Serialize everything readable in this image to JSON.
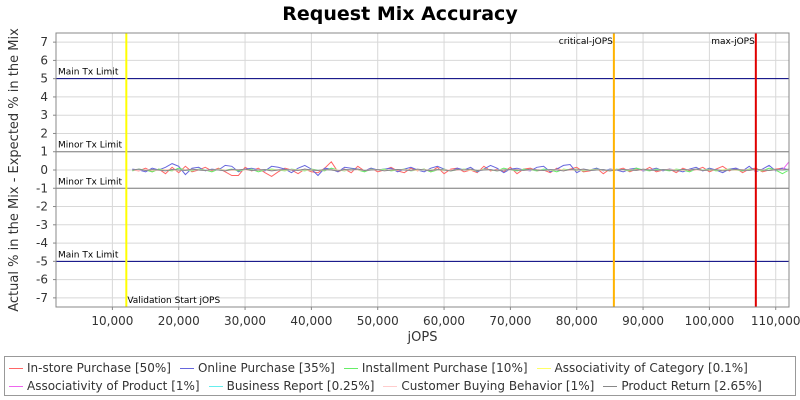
{
  "chart_data": {
    "type": "line",
    "title": "Request Mix Accuracy",
    "xlabel": "jOPS",
    "ylabel": "Actual % in the Mix - Expected % in the Mix",
    "xlim": [
      1500,
      112000
    ],
    "ylim": [
      -7.5,
      7.5
    ],
    "x_ticks": [
      10000,
      20000,
      30000,
      40000,
      50000,
      60000,
      70000,
      80000,
      90000,
      100000,
      110000
    ],
    "x_tick_labels": [
      "10,000",
      "20,000",
      "30,000",
      "40,000",
      "50,000",
      "60,000",
      "70,000",
      "80,000",
      "90,000",
      "100,000",
      "110,000"
    ],
    "y_ticks": [
      -7,
      -6,
      -5,
      -4,
      -3,
      -2,
      -1,
      0,
      1,
      2,
      3,
      4,
      5,
      6,
      7
    ],
    "grid": true,
    "legend_position": "bottom",
    "limit_lines": [
      {
        "label": "Main Tx Limit",
        "y": 5,
        "color": "#000080"
      },
      {
        "label": "Minor Tx Limit",
        "y": 1,
        "color": "#808080"
      },
      {
        "label": "Minor Tx Limit",
        "y": -1,
        "color": "#808080"
      },
      {
        "label": "Main Tx Limit",
        "y": -5,
        "color": "#000080"
      }
    ],
    "markers": [
      {
        "label": "Validation Start jOPS",
        "x": 12100,
        "color": "#ffff00",
        "label_position": "bottom"
      },
      {
        "label": "critical-jOPS",
        "x": 85600,
        "color": "#ffb300",
        "label_position": "top"
      },
      {
        "label": "max-jOPS",
        "x": 107000,
        "color": "#e00000",
        "label_position": "top"
      }
    ],
    "x": [
      13000,
      14000,
      15000,
      16000,
      17000,
      18000,
      19000,
      20000,
      21000,
      22000,
      23000,
      24000,
      25000,
      26000,
      27000,
      28000,
      29000,
      30000,
      31000,
      32000,
      33000,
      34000,
      35000,
      36000,
      37000,
      38000,
      39000,
      40000,
      41000,
      42000,
      43000,
      44000,
      45000,
      46000,
      47000,
      48000,
      49000,
      50000,
      51000,
      52000,
      53000,
      54000,
      55000,
      56000,
      57000,
      58000,
      59000,
      60000,
      61000,
      62000,
      63000,
      64000,
      65000,
      66000,
      67000,
      68000,
      69000,
      70000,
      71000,
      72000,
      73000,
      74000,
      75000,
      76000,
      77000,
      78000,
      79000,
      80000,
      81000,
      82000,
      83000,
      84000,
      85000,
      86000,
      87000,
      88000,
      89000,
      90000,
      91000,
      92000,
      93000,
      94000,
      95000,
      96000,
      97000,
      98000,
      99000,
      100000,
      101000,
      102000,
      103000,
      104000,
      105000,
      106000,
      107000,
      108000,
      109000,
      110000,
      111000,
      112000
    ],
    "series": [
      {
        "name": "In-store Purchase [50%]",
        "color": "#ff6666",
        "values": [
          0.0,
          -0.05,
          0.1,
          -0.1,
          0.05,
          -0.2,
          0.15,
          -0.15,
          0.2,
          -0.1,
          0.0,
          0.15,
          -0.05,
          0.1,
          -0.1,
          -0.3,
          -0.3,
          0.15,
          -0.05,
          0.1,
          -0.15,
          -0.35,
          -0.1,
          0.1,
          0.0,
          -0.2,
          0.05,
          -0.1,
          -0.15,
          0.1,
          0.45,
          -0.1,
          0.05,
          -0.15,
          0.2,
          -0.05,
          0.1,
          -0.1,
          0.0,
          0.15,
          -0.05,
          -0.15,
          0.1,
          -0.05,
          0.05,
          -0.1,
          0.15,
          -0.2,
          0.05,
          0.1,
          -0.1,
          0.0,
          -0.15,
          0.2,
          -0.05,
          0.05,
          -0.1,
          0.15,
          -0.2,
          0.05,
          0.1,
          -0.05,
          0.0,
          -0.15,
          0.1,
          -0.05,
          0.05,
          0.15,
          -0.1,
          -0.05,
          0.1,
          -0.2,
          0.05,
          0.0,
          0.1,
          -0.1,
          0.05,
          -0.05,
          0.15,
          -0.1,
          0.0,
          0.05,
          -0.15,
          0.1,
          -0.05,
          0.0,
          0.15,
          -0.1,
          0.05,
          0.2,
          -0.05,
          0.1,
          -0.15,
          0.05,
          0.1,
          -0.1,
          0.0,
          0.05,
          0.1,
          -0.05
        ]
      },
      {
        "name": "Online Purchase [35%]",
        "color": "#6666dd",
        "values": [
          0.05,
          0.0,
          -0.1,
          0.1,
          0.0,
          0.15,
          0.35,
          0.2,
          -0.25,
          0.1,
          0.15,
          -0.05,
          0.05,
          0.0,
          0.25,
          0.2,
          -0.1,
          0.05,
          0.1,
          0.0,
          -0.05,
          0.2,
          0.15,
          0.05,
          -0.15,
          0.1,
          0.25,
          0.05,
          -0.3,
          0.1,
          0.05,
          -0.1,
          0.15,
          0.1,
          0.05,
          -0.05,
          0.1,
          0.0,
          0.05,
          0.1,
          -0.1,
          0.05,
          0.15,
          0.0,
          -0.1,
          0.1,
          0.2,
          0.05,
          -0.05,
          0.1,
          0.0,
          0.15,
          -0.1,
          0.05,
          0.25,
          0.1,
          -0.15,
          0.05,
          0.1,
          0.0,
          -0.05,
          0.15,
          0.2,
          -0.1,
          0.05,
          0.25,
          0.3,
          -0.15,
          0.05,
          0.0,
          0.1,
          -0.05,
          0.05,
          0.0,
          -0.1,
          0.05,
          0.1,
          -0.05,
          0.0,
          0.1,
          -0.05,
          0.05,
          0.0,
          -0.1,
          0.05,
          0.15,
          -0.05,
          0.1,
          0.0,
          -0.15,
          0.05,
          0.1,
          -0.05,
          0.2,
          -0.1,
          0.05,
          0.25,
          -0.05,
          0.1,
          0.0
        ]
      },
      {
        "name": "Installment Purchase [10%]",
        "color": "#66ee66",
        "values": [
          -0.05,
          0.05,
          0.0,
          -0.1,
          0.05,
          0.0,
          -0.05,
          0.1,
          0.0,
          -0.05,
          0.05,
          0.0,
          -0.1,
          0.05,
          0.0,
          0.05,
          -0.05,
          0.0,
          0.05,
          -0.1,
          0.0,
          0.05,
          0.0,
          -0.05,
          0.05,
          0.0,
          -0.05,
          0.05,
          0.0,
          -0.05,
          0.1,
          0.0,
          -0.05,
          0.05,
          0.0,
          -0.1,
          0.05,
          0.0,
          0.05,
          -0.05,
          0.0,
          0.05,
          -0.05,
          0.0,
          0.05,
          -0.1,
          0.0,
          0.05,
          -0.05,
          0.0,
          0.05,
          0.0,
          -0.05,
          0.05,
          0.0,
          -0.05,
          0.1,
          0.0,
          -0.05,
          0.05,
          0.0,
          -0.05,
          0.05,
          0.0,
          -0.1,
          0.05,
          0.0,
          0.05,
          -0.05,
          0.0,
          0.05,
          0.0,
          -0.05,
          0.05,
          0.0,
          -0.05,
          0.1,
          0.0,
          -0.05,
          0.05,
          0.0,
          -0.05,
          0.05,
          0.0,
          -0.1,
          0.05,
          0.0,
          0.05,
          -0.05,
          0.0,
          0.05,
          0.0,
          -0.05,
          0.05,
          0.0,
          -0.05,
          0.1,
          0.0,
          -0.2,
          0.0
        ]
      },
      {
        "name": "Associativity of Category [0.1%]",
        "color": "#ffff66",
        "values": [
          0.0,
          0.01,
          0.0,
          -0.01,
          0.0,
          0.01,
          0.0,
          -0.01,
          0.0,
          0.01,
          0.0,
          -0.01,
          0.0,
          0.01,
          0.0,
          -0.01,
          0.0,
          0.01,
          0.0,
          -0.01,
          0.0,
          0.01,
          0.0,
          -0.01,
          0.0,
          0.01,
          0.0,
          -0.01,
          0.0,
          0.01,
          0.0,
          -0.01,
          0.0,
          0.01,
          0.0,
          -0.01,
          0.0,
          0.01,
          0.0,
          -0.01,
          0.0,
          0.01,
          0.0,
          -0.01,
          0.0,
          0.01,
          0.0,
          -0.01,
          0.0,
          0.01,
          0.0,
          -0.01,
          0.0,
          0.01,
          0.0,
          -0.01,
          0.0,
          0.01,
          0.0,
          -0.01,
          0.0,
          0.01,
          0.0,
          -0.01,
          0.0,
          0.01,
          0.0,
          -0.01,
          0.0,
          0.01,
          0.0,
          -0.01,
          0.0,
          0.01,
          0.0,
          -0.01,
          0.0,
          0.01,
          0.0,
          -0.01,
          0.0,
          0.01,
          0.0,
          -0.01,
          0.0,
          0.01,
          0.0,
          -0.01,
          0.0,
          0.01,
          0.0,
          -0.01,
          0.0,
          0.01,
          0.0,
          -0.01,
          0.0,
          0.01,
          0.0,
          -0.01
        ]
      },
      {
        "name": "Associativity of Product [1%]",
        "color": "#ee66ee",
        "values": [
          0.0,
          0.03,
          -0.02,
          0.02,
          0.0,
          -0.03,
          0.02,
          0.0,
          -0.02,
          0.03,
          0.0,
          -0.02,
          0.02,
          0.0,
          -0.03,
          0.02,
          0.0,
          0.03,
          -0.02,
          0.0,
          0.02,
          -0.03,
          0.0,
          0.02,
          0.0,
          -0.02,
          0.03,
          0.0,
          -0.02,
          0.02,
          0.0,
          -0.03,
          0.02,
          0.0,
          0.03,
          -0.02,
          0.0,
          0.02,
          -0.03,
          0.0,
          0.02,
          0.0,
          -0.02,
          0.03,
          0.0,
          -0.02,
          0.02,
          0.0,
          -0.03,
          0.02,
          0.0,
          0.03,
          -0.02,
          0.0,
          0.02,
          -0.03,
          0.0,
          0.02,
          0.0,
          -0.02,
          0.03,
          0.0,
          -0.02,
          0.02,
          0.0,
          -0.03,
          0.02,
          0.0,
          0.03,
          -0.02,
          0.0,
          0.02,
          -0.03,
          0.0,
          0.02,
          0.0,
          -0.02,
          0.03,
          0.0,
          -0.02,
          0.02,
          0.0,
          -0.03,
          0.02,
          0.0,
          0.03,
          -0.02,
          0.0,
          0.02,
          -0.03,
          0.0,
          0.02,
          0.0,
          -0.02,
          0.03,
          0.0,
          -0.02,
          0.02,
          0.0,
          0.45
        ]
      },
      {
        "name": "Business Report [0.25%]",
        "color": "#66eeee",
        "values": [
          0.0,
          0.02,
          -0.01,
          0.01,
          0.0,
          -0.02,
          0.01,
          0.0,
          -0.01,
          0.02,
          0.0,
          -0.01,
          0.01,
          0.0,
          -0.02,
          0.01,
          0.0,
          0.02,
          -0.01,
          0.0,
          0.01,
          -0.02,
          0.0,
          0.01,
          0.0,
          -0.01,
          0.02,
          0.0,
          -0.01,
          0.01,
          0.0,
          -0.02,
          0.01,
          0.0,
          0.02,
          -0.01,
          0.0,
          0.01,
          -0.02,
          0.0,
          0.01,
          0.0,
          -0.01,
          0.02,
          0.0,
          -0.01,
          0.01,
          0.0,
          -0.02,
          0.01,
          0.0,
          0.02,
          -0.01,
          0.0,
          0.01,
          -0.02,
          0.0,
          0.01,
          0.0,
          -0.01,
          0.02,
          0.0,
          -0.01,
          0.01,
          0.0,
          -0.02,
          0.01,
          0.0,
          0.02,
          -0.01,
          0.0,
          0.01,
          -0.02,
          0.0,
          0.01,
          0.0,
          -0.01,
          0.02,
          0.0,
          -0.01,
          0.01,
          0.0,
          -0.02,
          0.01,
          0.0,
          0.02,
          -0.01,
          0.0,
          0.01,
          -0.02,
          0.0,
          0.01,
          0.0,
          -0.01,
          0.02,
          0.0,
          -0.01,
          0.01,
          0.0,
          -0.02
        ]
      },
      {
        "name": "Customer Buying Behavior [1%]",
        "color": "#ffcccc",
        "values": [
          0.0,
          -0.02,
          0.03,
          0.0,
          -0.03,
          0.02,
          0.0,
          -0.02,
          0.03,
          0.0,
          0.02,
          -0.03,
          0.0,
          0.02,
          0.0,
          -0.02,
          0.03,
          0.0,
          -0.02,
          0.02,
          0.0,
          -0.03,
          0.02,
          0.0,
          0.03,
          -0.02,
          0.0,
          0.02,
          -0.03,
          0.0,
          0.02,
          0.0,
          -0.02,
          0.03,
          0.0,
          -0.02,
          0.02,
          0.0,
          -0.03,
          0.02,
          0.0,
          0.03,
          -0.02,
          0.0,
          0.02,
          -0.03,
          0.0,
          0.02,
          0.0,
          -0.02,
          0.03,
          0.0,
          -0.02,
          0.02,
          0.0,
          -0.03,
          0.02,
          0.0,
          0.03,
          -0.02,
          0.0,
          0.02,
          -0.03,
          0.0,
          0.02,
          0.0,
          -0.02,
          0.03,
          0.0,
          -0.02,
          0.02,
          0.0,
          -0.03,
          0.02,
          0.0,
          0.03,
          -0.02,
          0.0,
          0.02,
          -0.03,
          0.0,
          0.02,
          0.0,
          -0.02,
          0.03,
          0.0,
          -0.02,
          0.02,
          0.0,
          -0.03,
          0.02,
          0.0,
          0.03,
          -0.02,
          0.0,
          0.02,
          -0.03,
          0.0,
          0.02,
          0.0
        ]
      },
      {
        "name": "Product Return [2.65%]",
        "color": "#888888",
        "values": [
          0.0,
          0.05,
          -0.03,
          0.02,
          0.0,
          -0.05,
          0.03,
          0.0,
          -0.02,
          0.05,
          0.0,
          -0.03,
          0.02,
          0.0,
          -0.05,
          0.03,
          0.0,
          0.05,
          -0.03,
          0.0,
          0.02,
          -0.05,
          0.0,
          0.03,
          0.0,
          -0.02,
          0.05,
          0.0,
          -0.03,
          0.02,
          0.0,
          -0.05,
          0.03,
          0.0,
          0.05,
          -0.03,
          0.0,
          0.02,
          -0.05,
          0.0,
          0.03,
          0.0,
          -0.02,
          0.05,
          0.0,
          -0.03,
          0.02,
          0.0,
          -0.05,
          0.03,
          0.0,
          0.05,
          -0.03,
          0.0,
          0.02,
          -0.05,
          0.0,
          0.03,
          0.0,
          -0.02,
          0.05,
          0.0,
          -0.03,
          0.02,
          0.0,
          -0.05,
          0.03,
          0.0,
          0.05,
          -0.03,
          0.0,
          0.02,
          -0.05,
          0.0,
          0.03,
          0.0,
          -0.02,
          0.05,
          0.0,
          -0.03,
          0.02,
          0.0,
          -0.05,
          0.03,
          0.0,
          0.05,
          -0.03,
          0.0,
          0.02,
          -0.05,
          0.0,
          0.03,
          0.0,
          -0.02,
          0.05,
          0.0,
          -0.03,
          0.02,
          0.0,
          0.05
        ]
      }
    ]
  }
}
